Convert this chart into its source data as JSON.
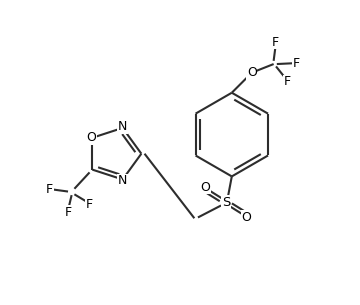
{
  "bg_color": "#ffffff",
  "bond_color": "#2d2d2d",
  "label_color": "#000000",
  "line_width": 1.5,
  "font_size": 9.0,
  "figsize": [
    3.6,
    3.05
  ],
  "dpi": 100,
  "xlim": [
    0,
    9
  ],
  "ylim": [
    0,
    7.5
  ]
}
